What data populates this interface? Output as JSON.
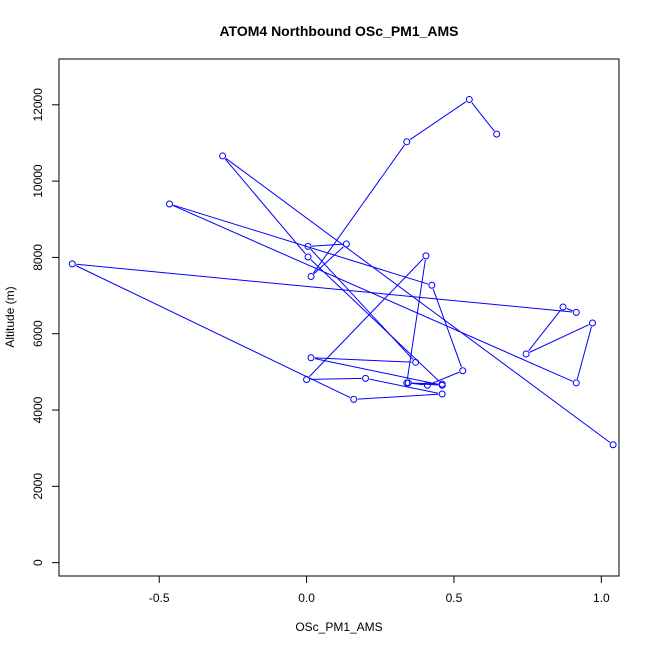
{
  "chart_data": {
    "type": "line",
    "title": "ATOM4 Northbound OSc_PM1_AMS",
    "xlabel": "OSc_PM1_AMS",
    "ylabel": "Altitude (m)",
    "xlim": [
      -0.84,
      1.06
    ],
    "ylim": [
      -350,
      13200
    ],
    "xticks": [
      -0.5,
      0.0,
      0.5,
      1.0
    ],
    "xtick_labels": [
      "-0.5",
      "0.0",
      "0.5",
      "1.0"
    ],
    "yticks": [
      0,
      2000,
      4000,
      6000,
      8000,
      10000,
      12000
    ],
    "ytick_labels": [
      "0",
      "2000",
      "4000",
      "6000",
      "8000",
      "10000",
      "12000"
    ],
    "grid": false,
    "series": [
      {
        "color": "#0000ff",
        "marker": "open-circle",
        "x": [
          0.645,
          0.552,
          0.34,
          0.015,
          0.135,
          0.005,
          0.37,
          0.015,
          0.46,
          0.34,
          0.405,
          0.0,
          0.2,
          0.46,
          0.16,
          -0.795,
          0.915,
          0.87,
          0.745,
          0.97,
          0.915,
          -0.465,
          0.425,
          0.53,
          0.41,
          0.345,
          0.46,
          0.005,
          -0.285,
          1.04
        ],
        "y": [
          11230,
          12140,
          11030,
          7500,
          8350,
          8290,
          5250,
          5370,
          4650,
          4710,
          8040,
          4800,
          4830,
          4420,
          4280,
          7830,
          6560,
          6700,
          5470,
          6280,
          4710,
          9400,
          7270,
          5030,
          4650,
          4710,
          4680,
          8010,
          10660,
          3090
        ]
      }
    ]
  }
}
